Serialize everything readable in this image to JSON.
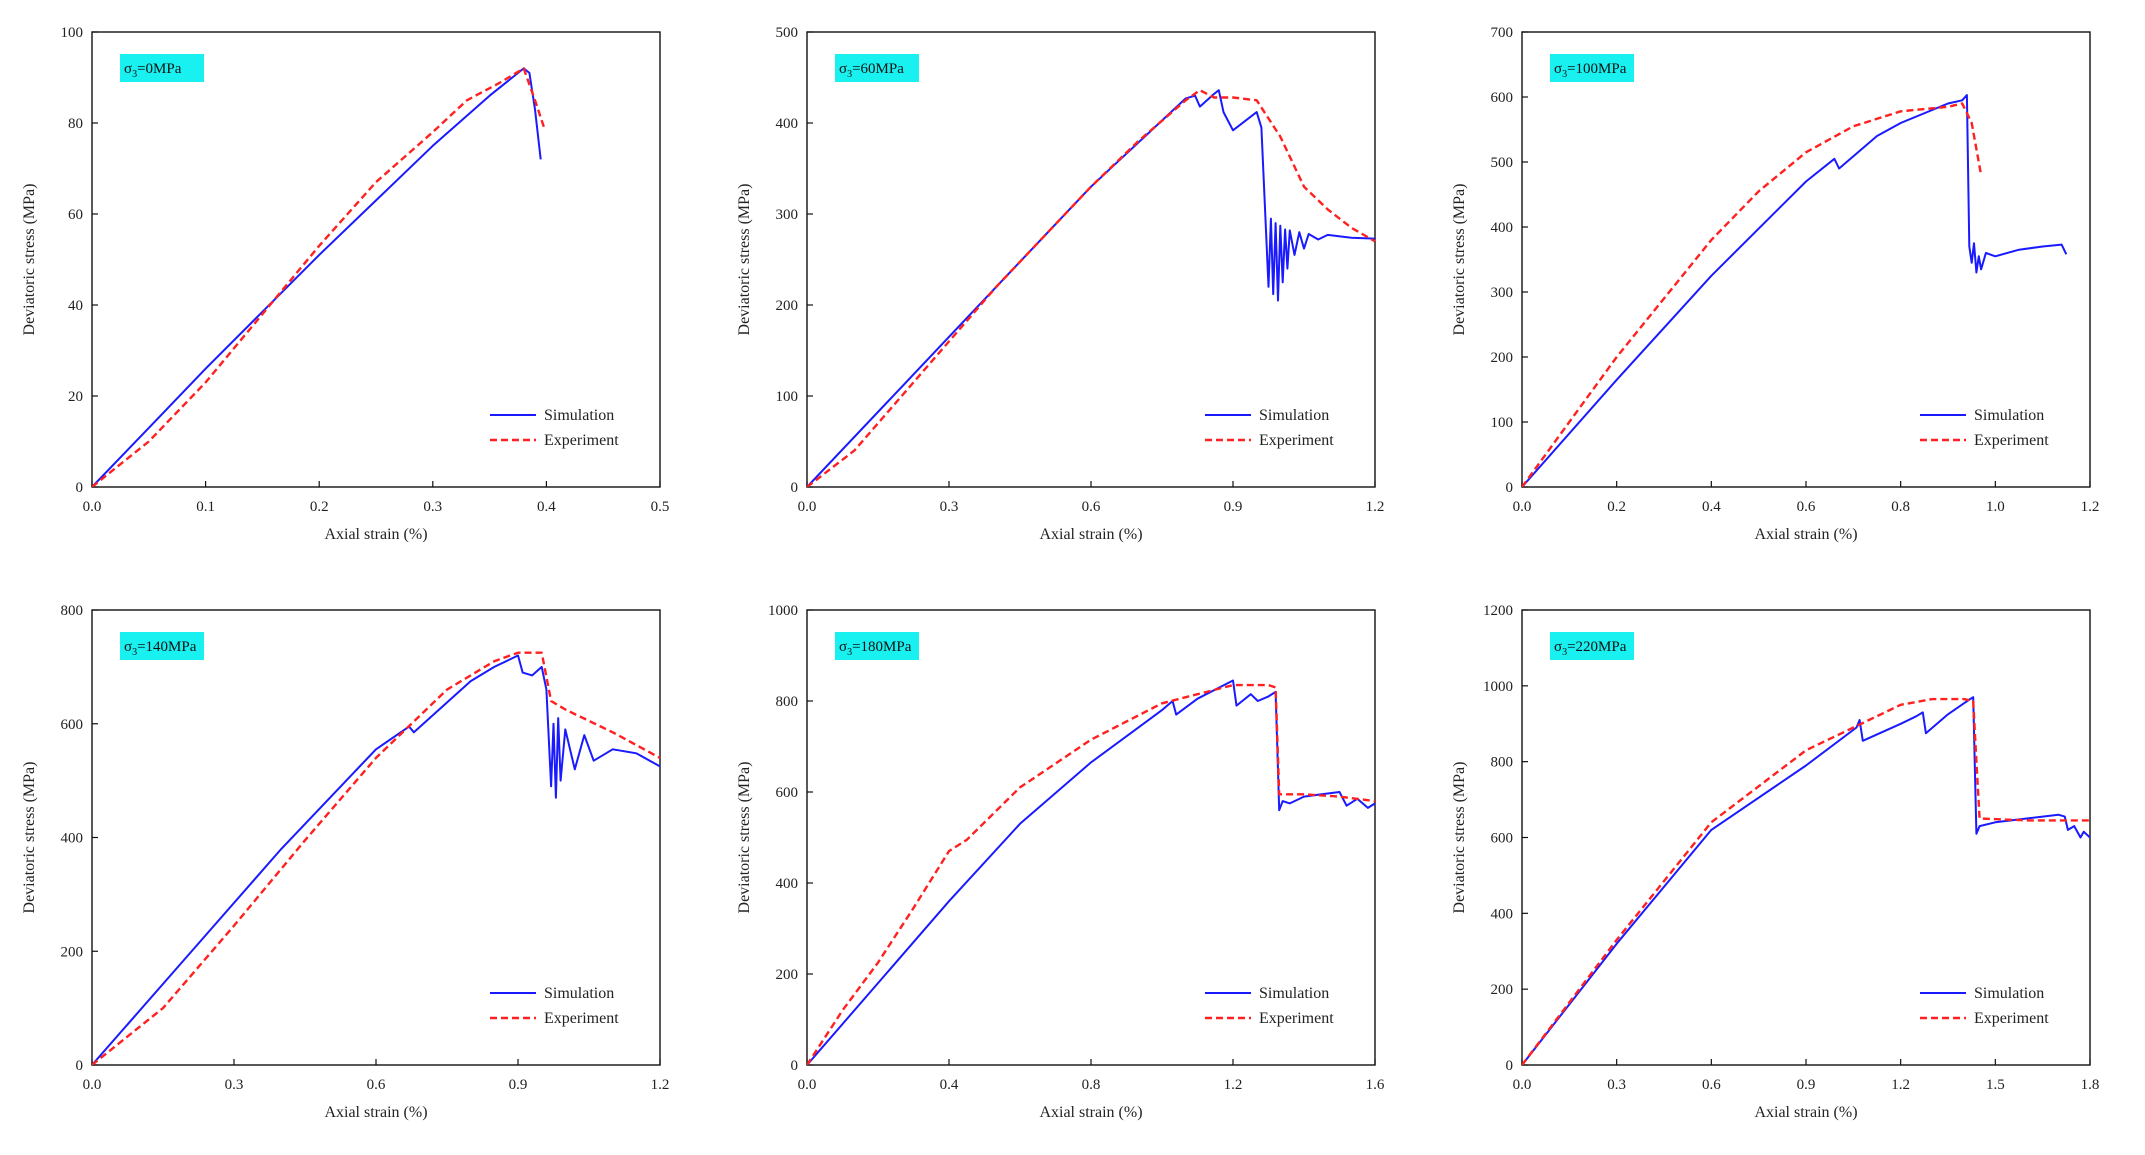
{
  "colors": {
    "simulation": "#1a1aff",
    "experiment": "#ff2020",
    "label_bg": "#19f0f0",
    "axis": "#111111"
  },
  "chart_data": [
    {
      "type": "line",
      "condition_label": "σ3=0MPa",
      "xlabel": "Axial strain (%)",
      "ylabel": "Deviatoric stress (MPa)",
      "xlim": [
        0,
        0.5
      ],
      "ylim": [
        0,
        100
      ],
      "xticks": [
        0.0,
        0.1,
        0.2,
        0.3,
        0.4,
        0.5
      ],
      "xtick_labels": [
        "0.0",
        "0.1",
        "0.2",
        "0.3",
        "0.4",
        "0.5"
      ],
      "yticks": [
        0,
        20,
        40,
        60,
        80,
        100
      ],
      "ytick_labels": [
        "0",
        "20",
        "40",
        "60",
        "80",
        "100"
      ],
      "legend_position": "bottom-right",
      "series": [
        {
          "name": "Simulation",
          "style": "solid",
          "x": [
            0.0,
            0.05,
            0.1,
            0.15,
            0.2,
            0.25,
            0.3,
            0.35,
            0.38,
            0.385,
            0.39,
            0.395
          ],
          "y": [
            0,
            13,
            26,
            38.5,
            51,
            63,
            75,
            86,
            92,
            91,
            83,
            72
          ]
        },
        {
          "name": "Experiment",
          "style": "dashed",
          "x": [
            0.0,
            0.05,
            0.1,
            0.15,
            0.2,
            0.25,
            0.3,
            0.33,
            0.36,
            0.38,
            0.39,
            0.398
          ],
          "y": [
            0,
            10,
            23,
            38,
            53,
            67,
            78,
            85,
            89,
            92,
            85,
            79
          ]
        }
      ]
    },
    {
      "type": "line",
      "condition_label": "σ3=60MPa",
      "xlabel": "Axial strain (%)",
      "ylabel": "Deviatoric stress (MPa)",
      "xlim": [
        0,
        1.2
      ],
      "ylim": [
        0,
        500
      ],
      "xticks": [
        0.0,
        0.3,
        0.6,
        0.9,
        1.2
      ],
      "xtick_labels": [
        "0.0",
        "0.3",
        "0.6",
        "0.9",
        "1.2"
      ],
      "yticks": [
        0,
        100,
        200,
        300,
        400,
        500
      ],
      "ytick_labels": [
        "0",
        "100",
        "200",
        "300",
        "400",
        "500"
      ],
      "legend_position": "bottom-right",
      "series": [
        {
          "name": "Simulation",
          "style": "solid",
          "x": [
            0.0,
            0.2,
            0.4,
            0.6,
            0.8,
            0.82,
            0.83,
            0.86,
            0.87,
            0.88,
            0.9,
            0.95,
            0.96,
            0.975,
            0.98,
            0.985,
            0.99,
            0.995,
            1.0,
            1.005,
            1.01,
            1.015,
            1.02,
            1.03,
            1.04,
            1.05,
            1.06,
            1.08,
            1.1,
            1.15,
            1.2
          ],
          "y": [
            0,
            110,
            220,
            330,
            427,
            430,
            418,
            432,
            436,
            412,
            392,
            412,
            395,
            220,
            295,
            212,
            290,
            205,
            287,
            225,
            283,
            240,
            282,
            255,
            280,
            262,
            278,
            272,
            277,
            274,
            273
          ]
        },
        {
          "name": "Experiment",
          "style": "dashed",
          "x": [
            0.0,
            0.1,
            0.2,
            0.3,
            0.4,
            0.5,
            0.6,
            0.7,
            0.8,
            0.83,
            0.86,
            0.9,
            0.95,
            1.0,
            1.05,
            1.1,
            1.15,
            1.2
          ],
          "y": [
            0,
            40,
            100,
            160,
            220,
            275,
            330,
            380,
            425,
            436,
            428,
            428,
            425,
            385,
            330,
            305,
            285,
            270
          ]
        }
      ]
    },
    {
      "type": "line",
      "condition_label": "σ3=100MPa",
      "xlabel": "Axial strain (%)",
      "ylabel": "Deviatoric stress (MPa)",
      "xlim": [
        0,
        1.2
      ],
      "ylim": [
        0,
        700
      ],
      "xticks": [
        0.0,
        0.2,
        0.4,
        0.6,
        0.8,
        1.0,
        1.2
      ],
      "xtick_labels": [
        "0.0",
        "0.2",
        "0.4",
        "0.6",
        "0.8",
        "1.0",
        "1.2"
      ],
      "yticks": [
        0,
        100,
        200,
        300,
        400,
        500,
        600,
        700
      ],
      "ytick_labels": [
        "0",
        "100",
        "200",
        "300",
        "400",
        "500",
        "600",
        "700"
      ],
      "legend_position": "bottom-right",
      "series": [
        {
          "name": "Simulation",
          "style": "solid",
          "x": [
            0.0,
            0.2,
            0.4,
            0.6,
            0.66,
            0.67,
            0.75,
            0.8,
            0.9,
            0.93,
            0.94,
            0.945,
            0.95,
            0.955,
            0.96,
            0.965,
            0.97,
            0.98,
            1.0,
            1.05,
            1.1,
            1.14,
            1.15
          ],
          "y": [
            0,
            165,
            325,
            470,
            505,
            490,
            540,
            560,
            590,
            595,
            603,
            370,
            345,
            375,
            330,
            355,
            335,
            360,
            355,
            365,
            370,
            373,
            358
          ]
        },
        {
          "name": "Experiment",
          "style": "dashed",
          "x": [
            0.0,
            0.1,
            0.2,
            0.3,
            0.4,
            0.5,
            0.6,
            0.7,
            0.8,
            0.9,
            0.93,
            0.95,
            0.97
          ],
          "y": [
            0,
            100,
            200,
            290,
            380,
            455,
            515,
            555,
            578,
            585,
            590,
            560,
            480
          ]
        }
      ]
    },
    {
      "type": "line",
      "condition_label": "σ3=140MPa",
      "xlabel": "Axial strain (%)",
      "ylabel": "Deviatoric stress (MPa)",
      "xlim": [
        0,
        1.2
      ],
      "ylim": [
        0,
        800
      ],
      "xticks": [
        0.0,
        0.3,
        0.6,
        0.9,
        1.2
      ],
      "xtick_labels": [
        "0.0",
        "0.3",
        "0.6",
        "0.9",
        "1.2"
      ],
      "yticks": [
        0,
        200,
        400,
        600,
        800
      ],
      "ytick_labels": [
        "0",
        "200",
        "400",
        "600",
        "800"
      ],
      "legend_position": "bottom-right",
      "series": [
        {
          "name": "Simulation",
          "style": "solid",
          "x": [
            0.0,
            0.2,
            0.4,
            0.6,
            0.67,
            0.68,
            0.8,
            0.85,
            0.9,
            0.91,
            0.93,
            0.95,
            0.96,
            0.97,
            0.975,
            0.98,
            0.985,
            0.99,
            1.0,
            1.02,
            1.04,
            1.06,
            1.1,
            1.15,
            1.2
          ],
          "y": [
            0,
            190,
            380,
            555,
            595,
            585,
            675,
            700,
            720,
            690,
            685,
            700,
            660,
            490,
            600,
            470,
            610,
            500,
            590,
            520,
            580,
            535,
            555,
            548,
            525
          ]
        },
        {
          "name": "Experiment",
          "style": "dashed",
          "x": [
            0.0,
            0.15,
            0.3,
            0.45,
            0.6,
            0.75,
            0.85,
            0.9,
            0.95,
            0.97,
            1.0,
            1.1,
            1.2
          ],
          "y": [
            0,
            100,
            245,
            395,
            540,
            660,
            710,
            725,
            725,
            640,
            625,
            585,
            540
          ]
        }
      ]
    },
    {
      "type": "line",
      "condition_label": "σ3=180MPa",
      "xlabel": "Axial strain (%)",
      "ylabel": "Deviatoric stress (MPa)",
      "xlim": [
        0,
        1.6
      ],
      "ylim": [
        0,
        1000
      ],
      "xticks": [
        0.0,
        0.4,
        0.8,
        1.2,
        1.6
      ],
      "xtick_labels": [
        "0.0",
        "0.4",
        "0.8",
        "1.2",
        "1.6"
      ],
      "yticks": [
        0,
        200,
        400,
        600,
        800,
        1000
      ],
      "ytick_labels": [
        "0",
        "200",
        "400",
        "600",
        "800",
        "1000"
      ],
      "legend_position": "bottom-right",
      "series": [
        {
          "name": "Simulation",
          "style": "solid",
          "x": [
            0.0,
            0.2,
            0.4,
            0.6,
            0.8,
            1.0,
            1.03,
            1.04,
            1.1,
            1.2,
            1.21,
            1.25,
            1.27,
            1.3,
            1.32,
            1.33,
            1.34,
            1.36,
            1.4,
            1.45,
            1.5,
            1.52,
            1.55,
            1.58,
            1.6
          ],
          "y": [
            0,
            180,
            360,
            530,
            665,
            780,
            800,
            770,
            805,
            845,
            790,
            815,
            800,
            810,
            820,
            560,
            580,
            575,
            590,
            595,
            600,
            570,
            585,
            565,
            575
          ]
        },
        {
          "name": "Experiment",
          "style": "dashed",
          "x": [
            0.0,
            0.1,
            0.2,
            0.3,
            0.4,
            0.45,
            0.6,
            0.8,
            1.0,
            1.2,
            1.3,
            1.32,
            1.33,
            1.4,
            1.5,
            1.6
          ],
          "y": [
            0,
            120,
            225,
            345,
            470,
            495,
            610,
            715,
            795,
            835,
            835,
            830,
            595,
            595,
            590,
            580
          ]
        }
      ]
    },
    {
      "type": "line",
      "condition_label": "σ3=220MPa",
      "xlabel": "Axial strain (%)",
      "ylabel": "Deviatoric stress (MPa)",
      "xlim": [
        0,
        1.8
      ],
      "ylim": [
        0,
        1200
      ],
      "xticks": [
        0.0,
        0.3,
        0.6,
        0.9,
        1.2,
        1.5,
        1.8
      ],
      "xtick_labels": [
        "0.0",
        "0.3",
        "0.6",
        "0.9",
        "1.2",
        "1.5",
        "1.8"
      ],
      "yticks": [
        0,
        200,
        400,
        600,
        800,
        1000,
        1200
      ],
      "ytick_labels": [
        "0",
        "200",
        "400",
        "600",
        "800",
        "1000",
        "1200"
      ],
      "legend_position": "bottom-right",
      "series": [
        {
          "name": "Simulation",
          "style": "solid",
          "x": [
            0.0,
            0.3,
            0.6,
            0.9,
            1.06,
            1.07,
            1.08,
            1.2,
            1.25,
            1.27,
            1.28,
            1.35,
            1.42,
            1.43,
            1.44,
            1.45,
            1.5,
            1.6,
            1.7,
            1.72,
            1.73,
            1.75,
            1.77,
            1.78,
            1.8
          ],
          "y": [
            0,
            320,
            620,
            790,
            890,
            910,
            855,
            900,
            920,
            930,
            875,
            925,
            965,
            970,
            610,
            630,
            640,
            650,
            660,
            655,
            620,
            630,
            600,
            615,
            600
          ]
        },
        {
          "name": "Experiment",
          "style": "dashed",
          "x": [
            0.0,
            0.3,
            0.6,
            0.9,
            1.2,
            1.3,
            1.4,
            1.43,
            1.44,
            1.45,
            1.6,
            1.8
          ],
          "y": [
            0,
            330,
            640,
            830,
            950,
            965,
            965,
            960,
            800,
            650,
            645,
            645
          ]
        }
      ]
    }
  ]
}
